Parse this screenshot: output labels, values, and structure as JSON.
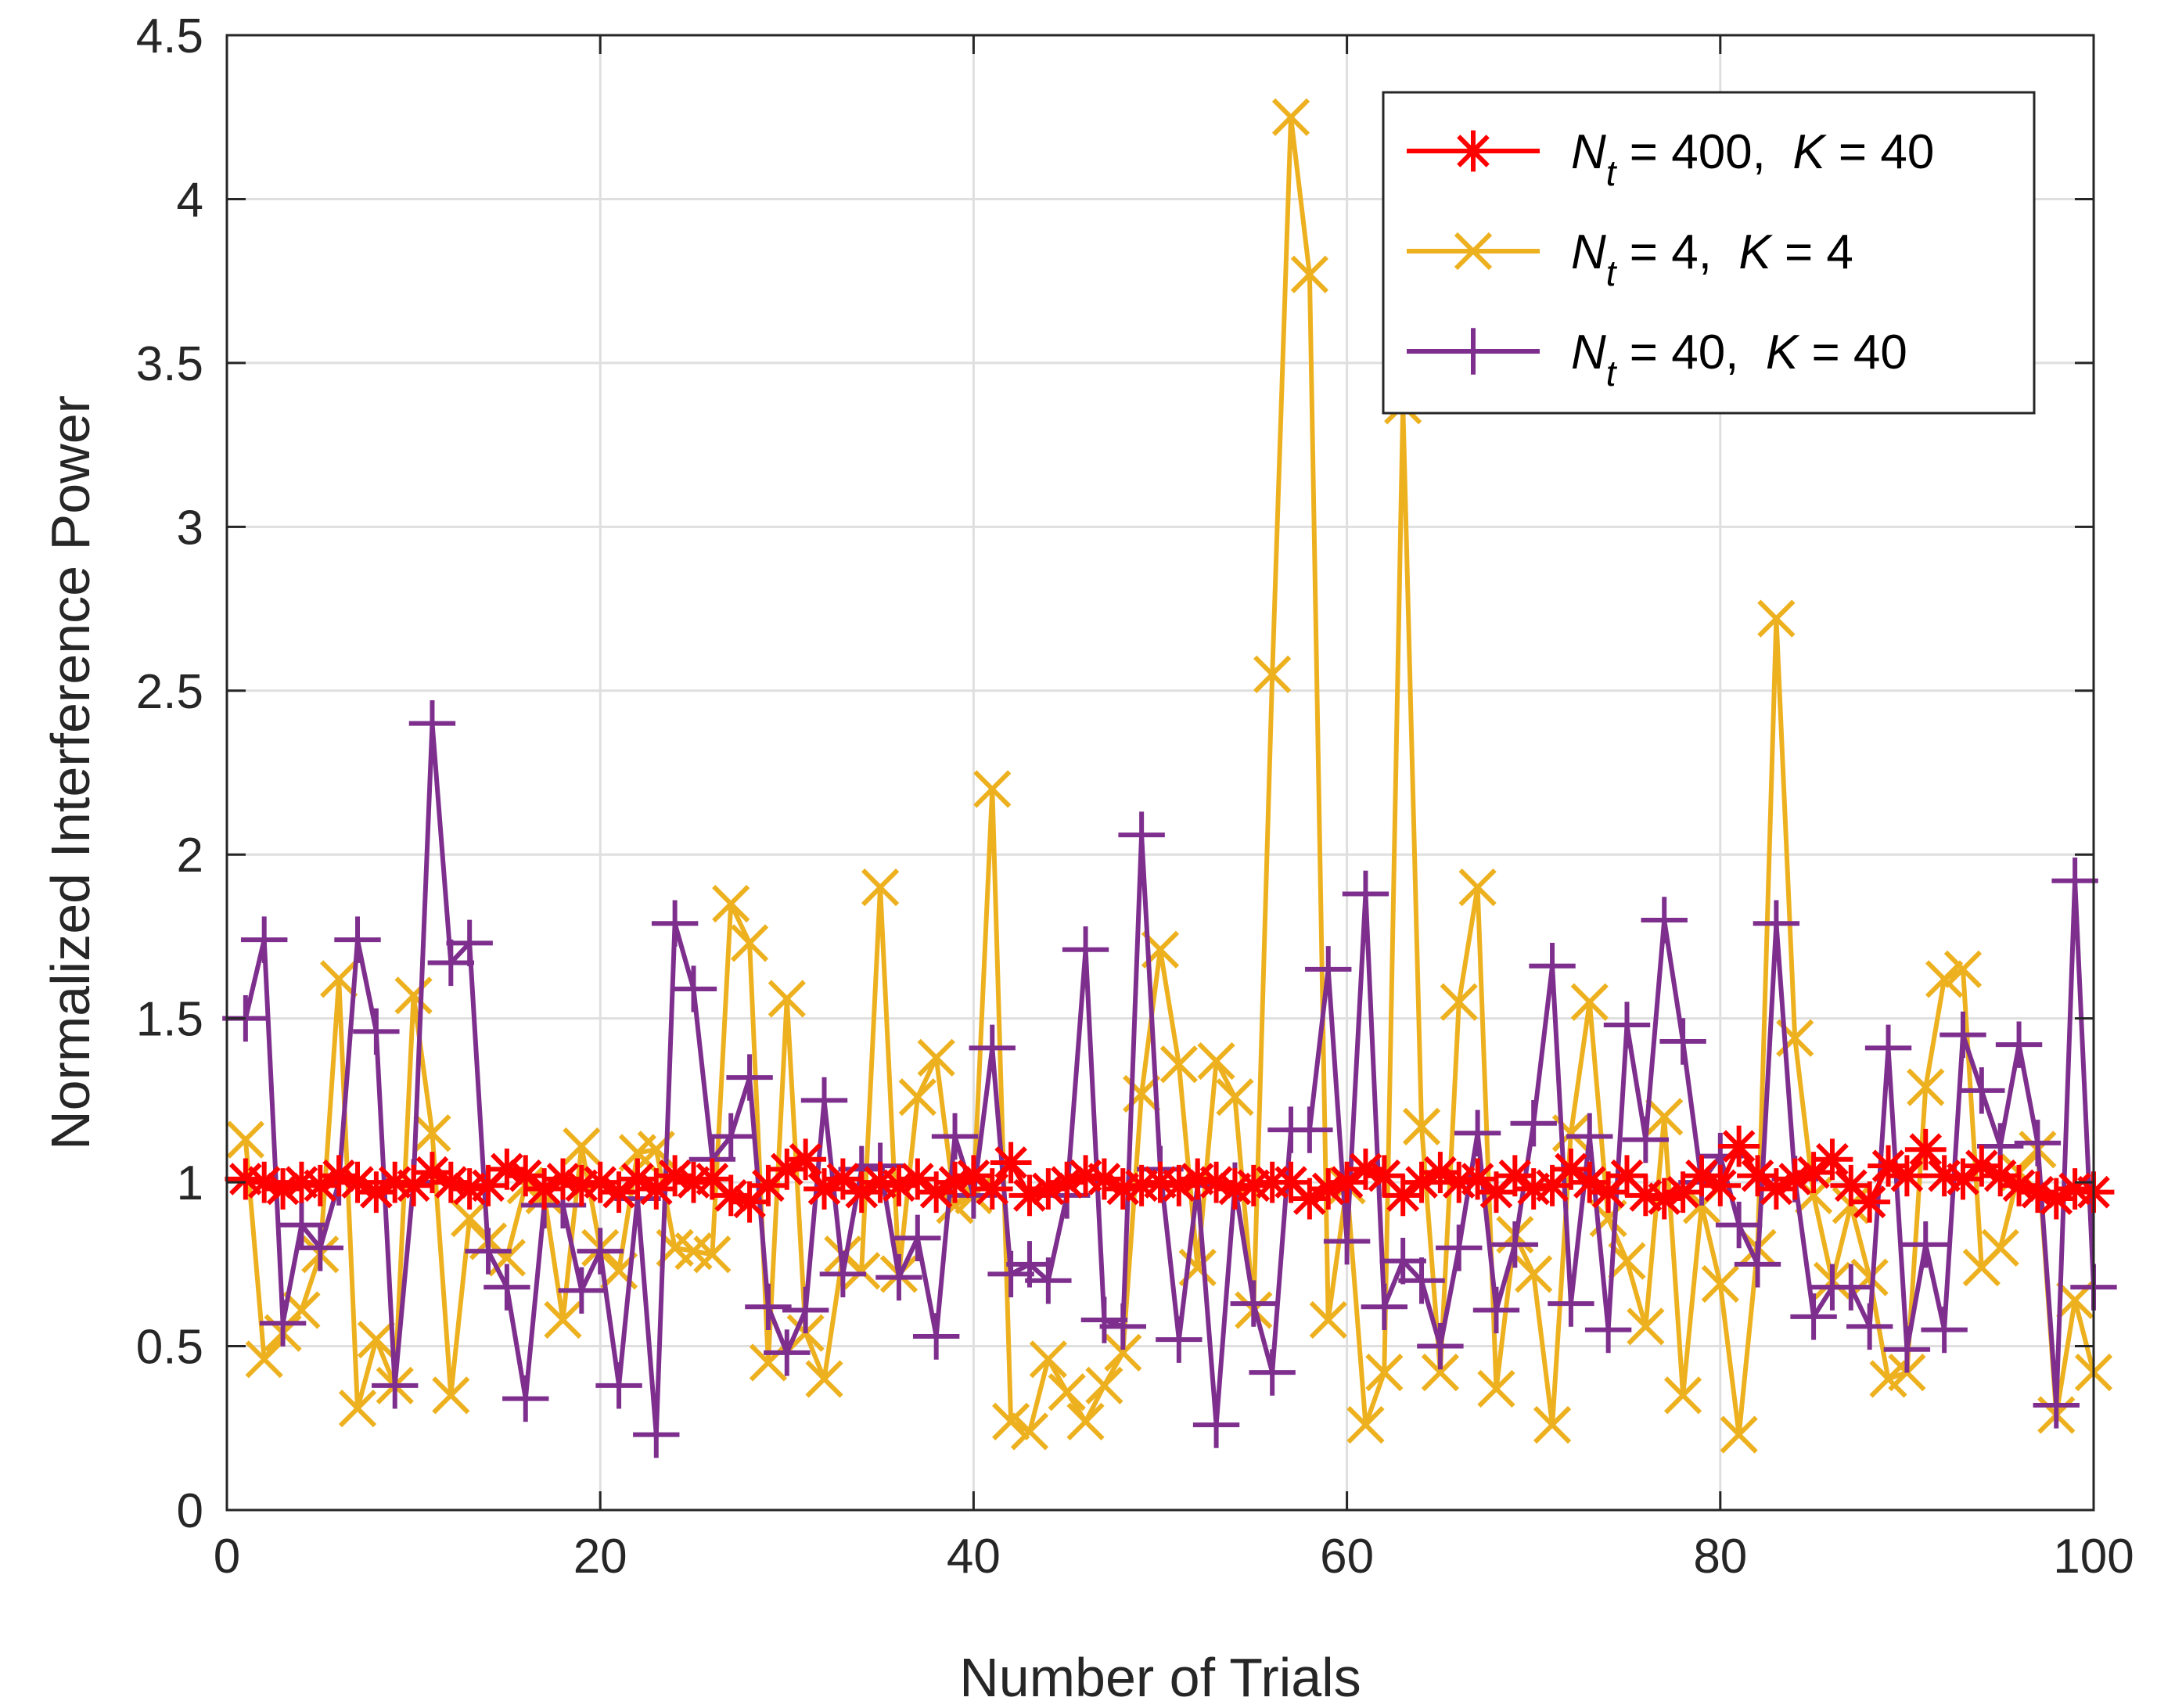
{
  "chart_data": {
    "type": "line",
    "xlabel": "Number of Trials",
    "ylabel": "Normalized Interference Power",
    "xlim": [
      0,
      100
    ],
    "ylim": [
      0,
      4.5
    ],
    "xticks": [
      0,
      20,
      40,
      60,
      80,
      100
    ],
    "xtick_labels": [
      "0",
      "20",
      "40",
      "60",
      "80",
      "100"
    ],
    "yticks": [
      0,
      0.5,
      1,
      1.5,
      2,
      2.5,
      3,
      3.5,
      4,
      4.5
    ],
    "ytick_labels": [
      "0",
      "0.5",
      "1",
      "1.5",
      "2",
      "2.5",
      "3",
      "3.5",
      "4",
      "4.5"
    ],
    "grid": true,
    "legend_position": "top-right",
    "x": [
      1,
      2,
      3,
      4,
      5,
      6,
      7,
      8,
      9,
      10,
      11,
      12,
      13,
      14,
      15,
      16,
      17,
      18,
      19,
      20,
      21,
      22,
      23,
      24,
      25,
      26,
      27,
      28,
      29,
      30,
      31,
      32,
      33,
      34,
      35,
      36,
      37,
      38,
      39,
      40,
      41,
      42,
      43,
      44,
      45,
      46,
      47,
      48,
      49,
      50,
      51,
      52,
      53,
      54,
      55,
      56,
      57,
      58,
      59,
      60,
      61,
      62,
      63,
      64,
      65,
      66,
      67,
      68,
      69,
      70,
      71,
      72,
      73,
      74,
      75,
      76,
      77,
      78,
      79,
      80,
      81,
      82,
      83,
      84,
      85,
      86,
      87,
      88,
      89,
      90,
      91,
      92,
      93,
      94,
      95,
      96,
      97,
      98,
      99,
      100
    ],
    "series": [
      {
        "name": "N_t = 400, K = 40",
        "legend": {
          "var1": "N",
          "sub": "t",
          "eq1": " = 400,",
          "var2": "K",
          "eq2": " = 40"
        },
        "color": "#ff0000",
        "marker": "asterisk",
        "values": [
          1.01,
          1.0,
          0.98,
          1.0,
          0.99,
          1.02,
          1.0,
          0.97,
          1.0,
          0.99,
          1.03,
          1.0,
          0.98,
          0.99,
          1.04,
          1.02,
          0.98,
          1.01,
          0.99,
          1.0,
          0.97,
          1.01,
          0.98,
          1.02,
          1.0,
          1.01,
          0.96,
          0.94,
          0.99,
          1.04,
          1.07,
          0.98,
          1.01,
          0.97,
          1.0,
          0.99,
          1.01,
          0.97,
          1.0,
          1.02,
          0.98,
          1.06,
          0.96,
          0.98,
          1.0,
          1.02,
          1.01,
          0.98,
          0.99,
          1.0,
          0.99,
          1.01,
          1.0,
          0.98,
          0.99,
          1.0,
          1.0,
          0.95,
          0.98,
          1.0,
          1.04,
          1.02,
          0.96,
          1.0,
          1.03,
          1.0,
          1.01,
          0.97,
          1.02,
          0.98,
          0.99,
          1.04,
          1.0,
          0.97,
          1.02,
          0.96,
          0.95,
          0.97,
          1.02,
          0.99,
          1.11,
          1.02,
          0.98,
          1.01,
          1.03,
          1.07,
          0.99,
          0.94,
          1.05,
          1.02,
          1.1,
          1.02,
          1.01,
          1.05,
          1.02,
          0.99,
          0.97,
          0.95,
          0.98,
          0.97
        ]
      },
      {
        "name": "N_t = 4, K = 4",
        "legend": {
          "var1": "N",
          "sub": "t",
          "eq1": " = 4,",
          "var2": "K",
          "eq2": " = 4"
        },
        "color": "#edb120",
        "marker": "x",
        "values": [
          1.13,
          0.46,
          0.54,
          0.61,
          0.78,
          1.62,
          0.31,
          0.52,
          0.38,
          1.57,
          1.15,
          0.35,
          0.89,
          0.82,
          0.77,
          0.99,
          0.96,
          0.58,
          1.11,
          0.8,
          0.73,
          1.09,
          1.1,
          0.8,
          0.79,
          0.78,
          1.85,
          1.73,
          0.45,
          1.56,
          0.54,
          0.4,
          0.78,
          0.73,
          1.9,
          0.72,
          1.26,
          1.38,
          0.93,
          0.96,
          2.2,
          0.27,
          0.24,
          0.46,
          0.36,
          0.27,
          0.38,
          0.48,
          1.27,
          1.71,
          1.36,
          0.74,
          1.37,
          1.26,
          0.61,
          2.55,
          4.25,
          3.77,
          0.58,
          0.99,
          0.26,
          0.42,
          3.37,
          1.17,
          0.42,
          1.55,
          1.9,
          0.37,
          0.84,
          0.72,
          0.26,
          1.15,
          1.55,
          0.89,
          0.76,
          0.56,
          1.2,
          0.35,
          0.93,
          0.69,
          0.23,
          0.8,
          2.72,
          1.44,
          0.96,
          0.7,
          0.93,
          0.71,
          0.4,
          0.42,
          1.29,
          1.62,
          1.65,
          0.74,
          0.8,
          1.03,
          1.1,
          0.29,
          0.64,
          0.42
        ]
      },
      {
        "name": "N_t = 40, K = 40",
        "legend": {
          "var1": "N",
          "sub": "t",
          "eq1": " = 40,",
          "var2": "K",
          "eq2": " = 40"
        },
        "color": "#7e2f8e",
        "marker": "plus",
        "values": [
          1.5,
          1.74,
          0.57,
          0.87,
          0.8,
          1.0,
          1.74,
          1.46,
          0.38,
          1.0,
          2.4,
          1.67,
          1.73,
          0.79,
          0.68,
          0.34,
          0.93,
          0.93,
          0.67,
          0.79,
          0.38,
          0.95,
          0.23,
          1.79,
          1.59,
          1.07,
          1.14,
          1.32,
          0.62,
          0.48,
          0.61,
          1.25,
          0.72,
          1.04,
          1.05,
          0.71,
          0.83,
          0.53,
          1.14,
          0.96,
          1.41,
          0.72,
          0.75,
          0.7,
          0.96,
          1.71,
          0.58,
          0.56,
          2.06,
          1.04,
          0.52,
          0.99,
          0.26,
          0.99,
          0.63,
          0.42,
          1.16,
          1.16,
          1.65,
          0.82,
          1.88,
          0.62,
          0.76,
          0.7,
          0.5,
          0.8,
          1.15,
          0.61,
          0.81,
          1.18,
          1.66,
          0.63,
          1.14,
          0.55,
          1.48,
          1.13,
          1.8,
          1.43,
          1.0,
          1.08,
          0.87,
          0.75,
          1.79,
          1.01,
          0.59,
          0.68,
          0.68,
          0.56,
          1.41,
          0.49,
          0.81,
          0.55,
          1.45,
          1.28,
          1.11,
          1.42,
          1.12,
          0.32,
          1.92,
          0.68
        ]
      }
    ]
  }
}
